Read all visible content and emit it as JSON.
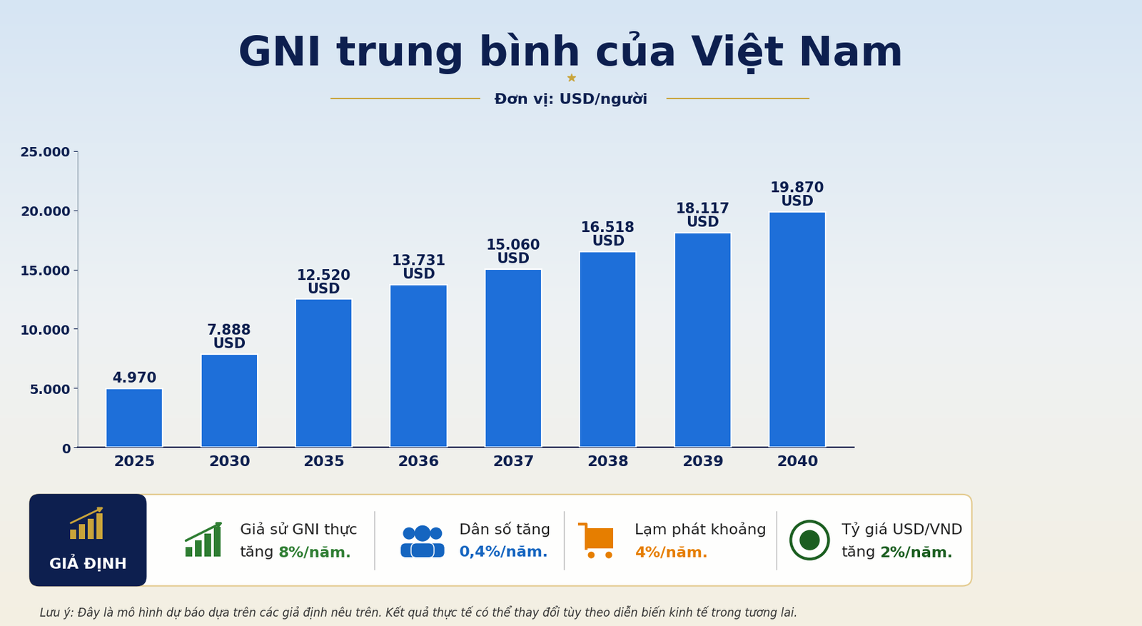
{
  "chart_data": {
    "type": "bar",
    "title": "GNI trung bình của Việt Nam",
    "subtitle": "Đơn vị: USD/người",
    "categories": [
      "2025",
      "2030",
      "2035",
      "2036",
      "2037",
      "2038",
      "2039",
      "2040"
    ],
    "values": [
      4970,
      7888,
      12520,
      13731,
      15060,
      16518,
      18117,
      19870
    ],
    "value_labels": [
      "4.970",
      "7.888\nUSD",
      "12.520\nUSD",
      "13.731\nUSD",
      "15.060\nUSD",
      "16.518\nUSD",
      "18.117\nUSD",
      "19.870\nUSD"
    ],
    "data_labels": true,
    "color": "#1e6fd9",
    "ylim": [
      0,
      25000
    ],
    "yticks": [
      {
        "value": 0,
        "label": "0"
      },
      {
        "value": 5000,
        "label": "5.000"
      },
      {
        "value": 10000,
        "label": "10.000"
      },
      {
        "value": 15000,
        "label": "15.000"
      },
      {
        "value": 20000,
        "label": "20.000"
      },
      {
        "value": 25000,
        "label": "25.000"
      }
    ],
    "grid": false
  },
  "assumptions": {
    "label": "GIẢ ĐỊNH",
    "items": [
      {
        "first": "Giả sử GNI thực",
        "second": "tăng",
        "highlight": "8%/năm.",
        "color": "#2e7d32"
      },
      {
        "first": "Dân số tăng",
        "highlight": "0,4%/năm.",
        "color": "#1565c0"
      },
      {
        "first": "Lạm phát khoảng",
        "highlight": "4%/năm.",
        "color": "#e67e00"
      },
      {
        "first": "Tỷ giá USD/VND",
        "second": "tăng",
        "highlight": "2%/năm.",
        "color": "#1b5e20"
      }
    ]
  },
  "note": "Lưu ý: Đây là mô hình dự báo dựa trên các giả định nêu trên. Kết quả thực tế có thể thay đổi tùy theo diễn biến kinh tế trong tương lai."
}
